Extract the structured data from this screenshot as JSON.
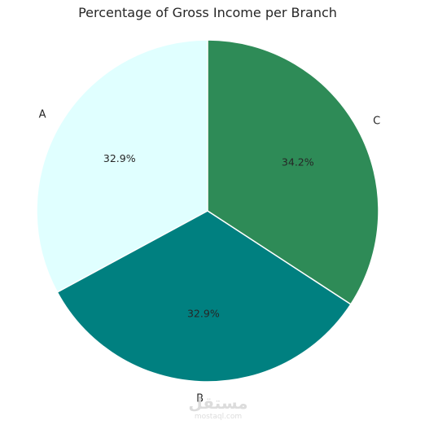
{
  "chart_data": {
    "type": "pie",
    "title": "Percentage of Gross Income per Branch",
    "categories": [
      "A",
      "B",
      "C"
    ],
    "values": [
      32.9,
      32.9,
      34.2
    ],
    "value_labels": [
      "32.9%",
      "32.9%",
      "34.2%"
    ],
    "colors": [
      "#e0ffff",
      "#008080",
      "#2e8b57"
    ],
    "start_angle_deg": 90,
    "direction": "counterclockwise"
  },
  "watermark": {
    "script_text": "مستقل",
    "url_text": "mostaql.com"
  }
}
